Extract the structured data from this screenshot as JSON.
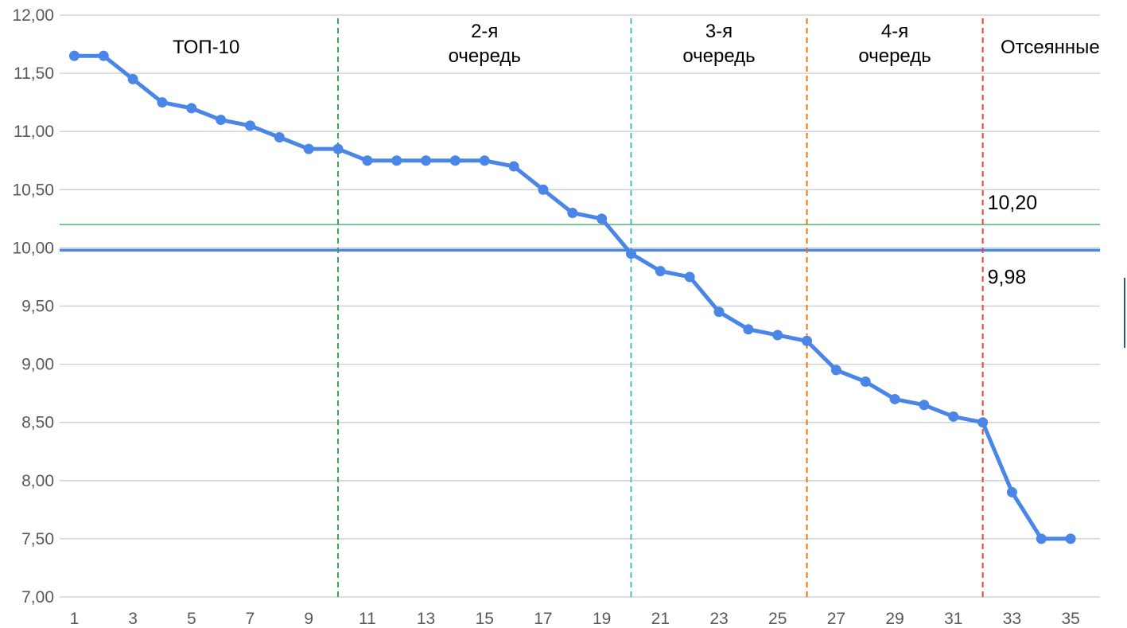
{
  "chart_data": {
    "type": "line",
    "title": "",
    "xlabel": "",
    "ylabel": "",
    "x": [
      1,
      2,
      3,
      4,
      5,
      6,
      7,
      8,
      9,
      10,
      11,
      12,
      13,
      14,
      15,
      16,
      17,
      18,
      19,
      20,
      21,
      22,
      23,
      24,
      25,
      26,
      27,
      28,
      29,
      30,
      31,
      32,
      33,
      34,
      35
    ],
    "x_tick_labels": [
      "1",
      "3",
      "5",
      "7",
      "9",
      "11",
      "13",
      "15",
      "17",
      "19",
      "21",
      "23",
      "25",
      "27",
      "29",
      "31",
      "33",
      "35"
    ],
    "y_tick_labels": [
      "7,00",
      "7,50",
      "8,00",
      "8,50",
      "9,00",
      "9,50",
      "10,00",
      "10,50",
      "11,00",
      "11,50",
      "12,00"
    ],
    "xlim": [
      0.5,
      36
    ],
    "ylim": [
      7.0,
      12.0
    ],
    "grid": true,
    "series": [
      {
        "color": "#4a86e8",
        "values": [
          11.65,
          11.65,
          11.45,
          11.25,
          11.2,
          11.1,
          11.05,
          10.95,
          10.85,
          10.85,
          10.75,
          10.75,
          10.75,
          10.75,
          10.75,
          10.7,
          10.5,
          10.3,
          10.25,
          9.95,
          9.8,
          9.75,
          9.45,
          9.3,
          9.25,
          9.2,
          8.95,
          8.85,
          8.7,
          8.65,
          8.55,
          8.5,
          7.9,
          7.5,
          7.5
        ]
      }
    ],
    "reference_lines": [
      {
        "y": 10.2,
        "label": "10,20",
        "color": "#34a853"
      },
      {
        "y": 9.98,
        "label": "9,98",
        "color": "#4a86e8"
      }
    ],
    "dividers": [
      {
        "x": 10,
        "color": "#34a853"
      },
      {
        "x": 20,
        "color": "#46bdc6"
      },
      {
        "x": 26,
        "color": "#ff6d01"
      },
      {
        "x": 32,
        "color": "#ea4335"
      }
    ],
    "zones": [
      {
        "lines": [
          "ТОП-10"
        ]
      },
      {
        "lines": [
          "2-я",
          "очередь"
        ]
      },
      {
        "lines": [
          "3-я",
          "очередь"
        ]
      },
      {
        "lines": [
          "4-я",
          "очередь"
        ]
      },
      {
        "lines": [
          "Отсеянные"
        ]
      }
    ]
  }
}
